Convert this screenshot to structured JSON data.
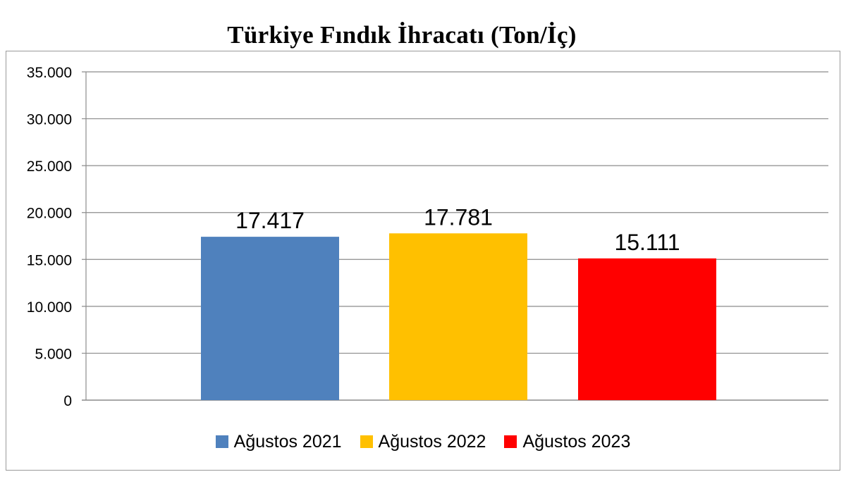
{
  "chart_data": {
    "type": "bar",
    "title": "Türkiye Fındık İhracatı (Ton/İç)",
    "xlabel": "",
    "ylabel": "",
    "ylim": [
      0,
      35000
    ],
    "y_ticks": [
      0,
      5000,
      10000,
      15000,
      20000,
      25000,
      30000,
      35000
    ],
    "y_tick_labels": [
      "0",
      "5.000",
      "10.000",
      "15.000",
      "20.000",
      "25.000",
      "30.000",
      "35.000"
    ],
    "grid": true,
    "legend_position": "bottom",
    "series": [
      {
        "name": "Ağustos 2021",
        "value": 17417,
        "label": "17.417",
        "color": "#4F81BD"
      },
      {
        "name": "Ağustos 2022",
        "value": 17781,
        "label": "17.781",
        "color": "#FFC000"
      },
      {
        "name": "Ağustos 2023",
        "value": 15111,
        "label": "15.111",
        "color": "#FF0000"
      }
    ]
  }
}
